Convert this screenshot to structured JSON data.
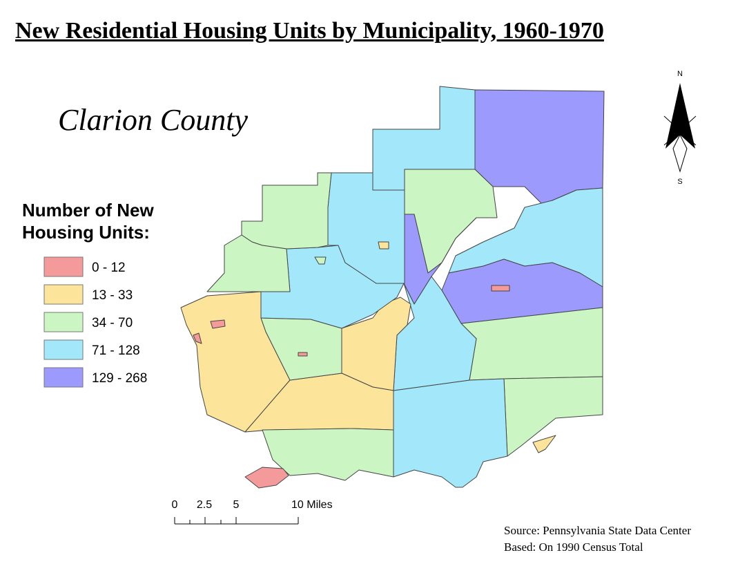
{
  "title": "New Residential Housing Units by Municipality, 1960-1970",
  "subtitle": "Clarion County",
  "legend": {
    "title": "Number of New Housing Units:",
    "items": [
      {
        "label": "0 - 12",
        "color": "#f59a9a"
      },
      {
        "label": "13 - 33",
        "color": "#fde49b"
      },
      {
        "label": "34 - 70",
        "color": "#cbf5c3"
      },
      {
        "label": "71 - 128",
        "color": "#a3e7fb"
      },
      {
        "label": "129 - 268",
        "color": "#9d9afd"
      }
    ]
  },
  "north_arrow": {
    "north": "N",
    "south": "S"
  },
  "scale_bar": [
    "0",
    "2.5",
    "5",
    "10 Miles"
  ],
  "source": [
    "Source: Pennsylvania State Data Center",
    "Based: On 1990 Census Total"
  ]
}
